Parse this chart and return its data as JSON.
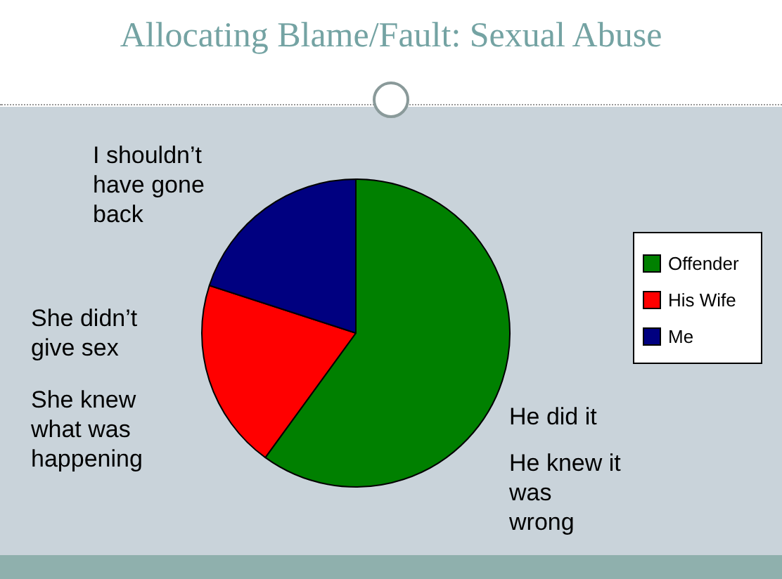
{
  "chart_data": {
    "type": "pie",
    "title": "Allocating Blame/Fault: Sexual Abuse",
    "categories": [
      "Offender",
      "His Wife",
      "Me"
    ],
    "values": [
      60,
      20,
      20
    ],
    "colors": [
      "#008000",
      "#ff0000",
      "#000080"
    ],
    "legend": "right",
    "annotations": [
      "I shouldn’t have gone back",
      "She didn’t give sex",
      "She knew what was happening",
      "He did it",
      "He knew it was wrong"
    ]
  }
}
